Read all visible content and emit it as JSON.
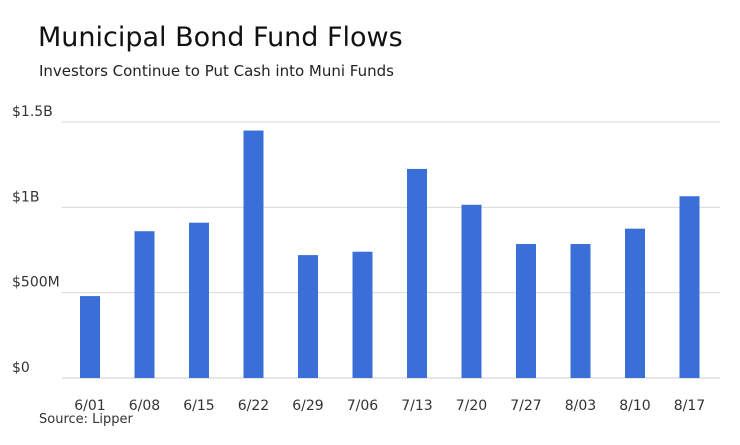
{
  "title": "Municipal Bond Fund Flows",
  "subtitle": "Investors Continue to Put Cash into Muni Funds",
  "source": "Source: Lipper",
  "colors": {
    "bar": "#3a6fd8",
    "grid": "#d8d8d8",
    "axis": "#cccccc"
  },
  "chart_data": {
    "type": "bar",
    "title": "Municipal Bond Fund Flows",
    "subtitle": "Investors Continue to Put Cash into Muni Funds",
    "xlabel": "",
    "ylabel": "",
    "categories": [
      "6/01",
      "6/08",
      "6/15",
      "6/22",
      "6/29",
      "7/06",
      "7/13",
      "7/20",
      "7/27",
      "8/03",
      "8/10",
      "8/17"
    ],
    "values": [
      480,
      860,
      910,
      1450,
      720,
      740,
      1225,
      1015,
      785,
      785,
      875,
      1065
    ],
    "value_units": "millions of dollars",
    "ylim": [
      0,
      1500
    ],
    "yticks": [
      {
        "value": 0,
        "label": "$0"
      },
      {
        "value": 500,
        "label": "$500M"
      },
      {
        "value": 1000,
        "label": "$1B"
      },
      {
        "value": 1500,
        "label": "$1.5B"
      }
    ],
    "grid": true,
    "legend": "none"
  }
}
